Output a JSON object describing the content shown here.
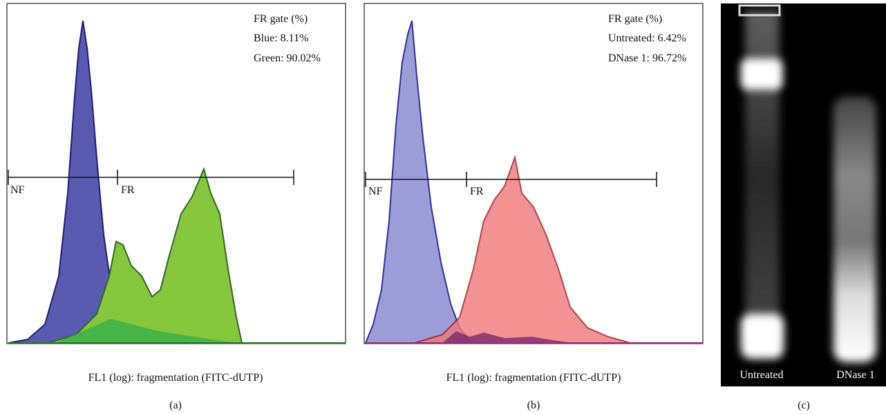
{
  "panels": [
    {
      "gate_title": "FR gate (%)",
      "gate_lines": [
        "Blue: 8.11%",
        "Green: 90.02%"
      ],
      "markers": [
        "NF",
        "FR"
      ],
      "x_axis_label": "FL1 (log): fragmentation (FITC-dUTP)",
      "label": "(a)"
    },
    {
      "gate_title": "FR gate (%)",
      "gate_lines": [
        "Untreated: 6.42%",
        "DNase 1: 96.72%"
      ],
      "markers": [
        "NF",
        "FR"
      ],
      "x_axis_label": "FL1 (log): fragmentation (FITC-dUTP)",
      "label": "(b)"
    }
  ],
  "gel": {
    "lanes": [
      "Untreated",
      "DNase 1"
    ],
    "label": "(c)"
  }
}
